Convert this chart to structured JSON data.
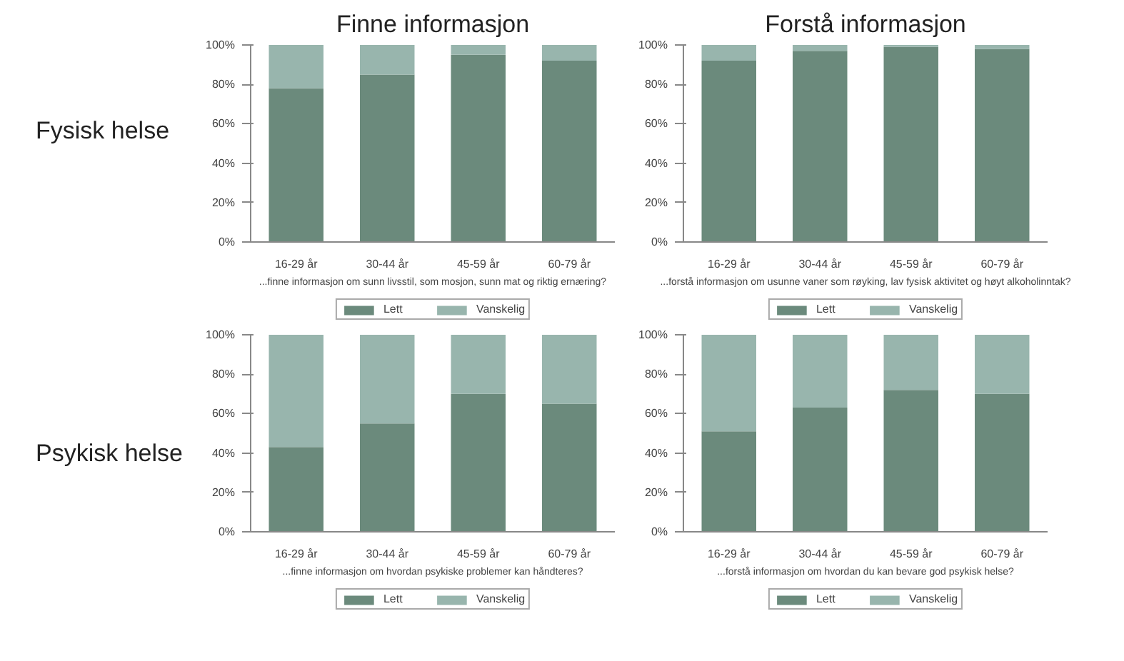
{
  "chart_data": [
    {
      "type": "bar",
      "stacked": true,
      "title": "Finne informasjon",
      "ylabel": "Fysisk helse",
      "xlabel": "...finne informasjon om sunn livsstil, som mosjon, sunn mat og riktig ernæring?",
      "categories": [
        "16-29 år",
        "30-44 år",
        "45-59 år",
        "60-79 år"
      ],
      "ylim": [
        0,
        100
      ],
      "yticks": [
        {
          "value": 0,
          "label": "0%"
        },
        {
          "value": 20,
          "label": "20%"
        },
        {
          "value": 40,
          "label": "40%"
        },
        {
          "value": 60,
          "label": "60%"
        },
        {
          "value": 80,
          "label": "80%"
        },
        {
          "value": 100,
          "label": "100%"
        }
      ],
      "legend": "bottom",
      "series": [
        {
          "name": "Lett",
          "color": "#6b8a7c",
          "values": [
            78,
            85,
            95,
            92
          ]
        },
        {
          "name": "Vanskelig",
          "color": "#98b5ad",
          "values": [
            22,
            15,
            5,
            8
          ]
        }
      ]
    },
    {
      "type": "bar",
      "stacked": true,
      "title": "Forstå informasjon",
      "xlabel": "...forstå informasjon om usunne vaner som røyking, lav fysisk aktivitet og høyt alkoholinntak?",
      "categories": [
        "16-29 år",
        "30-44 år",
        "45-59 år",
        "60-79 år"
      ],
      "ylim": [
        0,
        100
      ],
      "yticks": [
        {
          "value": 0,
          "label": "0%"
        },
        {
          "value": 20,
          "label": "20%"
        },
        {
          "value": 40,
          "label": "40%"
        },
        {
          "value": 60,
          "label": "60%"
        },
        {
          "value": 80,
          "label": "80%"
        },
        {
          "value": 100,
          "label": "100%"
        }
      ],
      "legend": "bottom",
      "series": [
        {
          "name": "Lett",
          "color": "#6b8a7c",
          "values": [
            92,
            97,
            99,
            98
          ]
        },
        {
          "name": "Vanskelig",
          "color": "#98b5ad",
          "values": [
            8,
            3,
            1,
            2
          ]
        }
      ]
    },
    {
      "type": "bar",
      "stacked": true,
      "ylabel": "Psykisk helse",
      "xlabel": "...finne informasjon om hvordan psykiske problemer kan håndteres?",
      "categories": [
        "16-29 år",
        "30-44 år",
        "45-59 år",
        "60-79 år"
      ],
      "ylim": [
        0,
        100
      ],
      "yticks": [
        {
          "value": 0,
          "label": "0%"
        },
        {
          "value": 20,
          "label": "20%"
        },
        {
          "value": 40,
          "label": "40%"
        },
        {
          "value": 60,
          "label": "60%"
        },
        {
          "value": 80,
          "label": "80%"
        },
        {
          "value": 100,
          "label": "100%"
        }
      ],
      "legend": "bottom",
      "series": [
        {
          "name": "Lett",
          "color": "#6b8a7c",
          "values": [
            43,
            55,
            70,
            65
          ]
        },
        {
          "name": "Vanskelig",
          "color": "#98b5ad",
          "values": [
            57,
            45,
            30,
            35
          ]
        }
      ]
    },
    {
      "type": "bar",
      "stacked": true,
      "xlabel": "...forstå informasjon om hvordan du kan bevare god psykisk helse?",
      "categories": [
        "16-29 år",
        "30-44 år",
        "45-59 år",
        "60-79 år"
      ],
      "ylim": [
        0,
        100
      ],
      "yticks": [
        {
          "value": 0,
          "label": "0%"
        },
        {
          "value": 20,
          "label": "20%"
        },
        {
          "value": 40,
          "label": "40%"
        },
        {
          "value": 60,
          "label": "60%"
        },
        {
          "value": 80,
          "label": "80%"
        },
        {
          "value": 100,
          "label": "100%"
        }
      ],
      "legend": "bottom",
      "series": [
        {
          "name": "Lett",
          "color": "#6b8a7c",
          "values": [
            51,
            63,
            72,
            70
          ]
        },
        {
          "name": "Vanskelig",
          "color": "#98b5ad",
          "values": [
            49,
            37,
            28,
            30
          ]
        }
      ]
    }
  ]
}
